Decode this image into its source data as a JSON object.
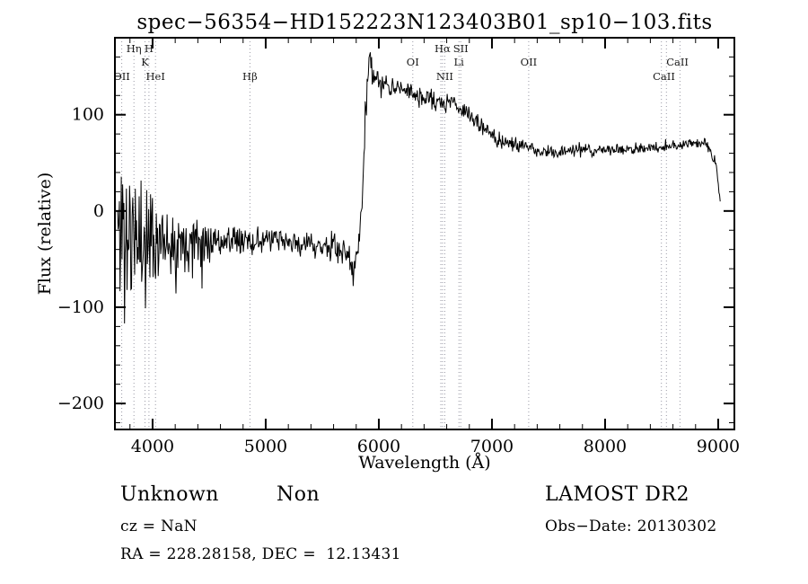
{
  "title": "spec−56354−HD152223N123403B01_sp10−103.fits",
  "chart_data": {
    "type": "line",
    "title": "spec−56354−HD152223N123403B01_sp10−103.fits",
    "xlabel": "Wavelength (Å)",
    "ylabel": "Flux (relative)",
    "xlim": [
      3667,
      9143
    ],
    "ylim": [
      -227,
      180
    ],
    "xticks": [
      4000,
      5000,
      6000,
      7000,
      8000,
      9000
    ],
    "yticks": [
      -200,
      -100,
      0,
      100
    ],
    "x_minor_step": 200,
    "y_minor_step": 20,
    "grid": false,
    "legend": "none",
    "series": [
      {
        "name": "spectrum",
        "color": "#000000",
        "samples": 950,
        "seed": 11,
        "wl_range": [
          3690,
          9018
        ],
        "continuum": [
          [
            3690,
            -15
          ],
          [
            3780,
            -28
          ],
          [
            3900,
            -30
          ],
          [
            4050,
            -28
          ],
          [
            4250,
            -30
          ],
          [
            4500,
            -30
          ],
          [
            4750,
            -32
          ],
          [
            5000,
            -30
          ],
          [
            5250,
            -33
          ],
          [
            5450,
            -36
          ],
          [
            5600,
            -38
          ],
          [
            5700,
            -44
          ],
          [
            5785,
            -60
          ],
          [
            5820,
            -35
          ],
          [
            5850,
            5
          ],
          [
            5880,
            95
          ],
          [
            5905,
            145
          ],
          [
            5920,
            160
          ],
          [
            5945,
            143
          ],
          [
            5975,
            136
          ],
          [
            6050,
            130
          ],
          [
            6120,
            126
          ],
          [
            6200,
            128
          ],
          [
            6300,
            122
          ],
          [
            6400,
            118
          ],
          [
            6500,
            114
          ],
          [
            6570,
            110
          ],
          [
            6640,
            115
          ],
          [
            6700,
            108
          ],
          [
            6760,
            104
          ],
          [
            6820,
            98
          ],
          [
            6880,
            90
          ],
          [
            6960,
            82
          ],
          [
            7060,
            74
          ],
          [
            7160,
            70
          ],
          [
            7280,
            67
          ],
          [
            7420,
            62
          ],
          [
            7560,
            61
          ],
          [
            7700,
            64
          ],
          [
            7850,
            62
          ],
          [
            8000,
            64
          ],
          [
            8160,
            63
          ],
          [
            8320,
            65
          ],
          [
            8480,
            66
          ],
          [
            8640,
            69
          ],
          [
            8780,
            71
          ],
          [
            8880,
            71
          ],
          [
            8940,
            62
          ],
          [
            8985,
            45
          ],
          [
            9018,
            8
          ]
        ],
        "noise_amp": [
          [
            3690,
            105
          ],
          [
            3760,
            90
          ],
          [
            3850,
            70
          ],
          [
            3950,
            58
          ],
          [
            4060,
            45
          ],
          [
            4200,
            34
          ],
          [
            4380,
            26
          ],
          [
            4600,
            18
          ],
          [
            4900,
            14
          ],
          [
            5200,
            12
          ],
          [
            5500,
            13
          ],
          [
            5700,
            15
          ],
          [
            5800,
            18
          ],
          [
            5880,
            16
          ],
          [
            5950,
            13
          ],
          [
            6100,
            11
          ],
          [
            6400,
            10
          ],
          [
            6700,
            9
          ],
          [
            7000,
            8
          ],
          [
            7400,
            7
          ],
          [
            7800,
            7
          ],
          [
            8200,
            6
          ],
          [
            8600,
            6
          ],
          [
            8950,
            7
          ],
          [
            9018,
            4
          ]
        ]
      }
    ],
    "line_markers": {
      "line_color": "#9a9aa6",
      "label_color": "#1a1a1a",
      "lines": [
        3727,
        3835,
        3933,
        3968,
        4026,
        4861,
        6300,
        6548,
        6563,
        6583,
        6708,
        6724,
        7325,
        8498,
        8542,
        8662
      ],
      "labels": [
        {
          "text": "Hη",
          "wl": 3835,
          "row": 0
        },
        {
          "text": "H",
          "wl": 3968,
          "row": 0
        },
        {
          "text": "K",
          "wl": 3933,
          "row": 1
        },
        {
          "text": "OII",
          "wl": 3727,
          "row": 2
        },
        {
          "text": "HeI",
          "wl": 4026,
          "row": 2
        },
        {
          "text": "Hβ",
          "wl": 4861,
          "row": 2
        },
        {
          "text": "OI",
          "wl": 6300,
          "row": 1
        },
        {
          "text": "Hα",
          "wl": 6563,
          "row": 0
        },
        {
          "text": "SII",
          "wl": 6724,
          "row": 0
        },
        {
          "text": "NII",
          "wl": 6583,
          "row": 2
        },
        {
          "text": "Li",
          "wl": 6708,
          "row": 1
        },
        {
          "text": "OII",
          "wl": 7325,
          "row": 1
        },
        {
          "text": "CaII",
          "wl": 8640,
          "row": 1
        },
        {
          "text": "CaII",
          "wl": 8520,
          "row": 2
        }
      ]
    }
  },
  "annotations": {
    "class_name": "Unknown",
    "subclass": "Non",
    "survey": "LAMOST DR2",
    "cz": "cz = NaN",
    "obs_date": "Obs−Date: 20130302",
    "ra_dec": "RA = 228.28158, DEC =  12.13431"
  }
}
